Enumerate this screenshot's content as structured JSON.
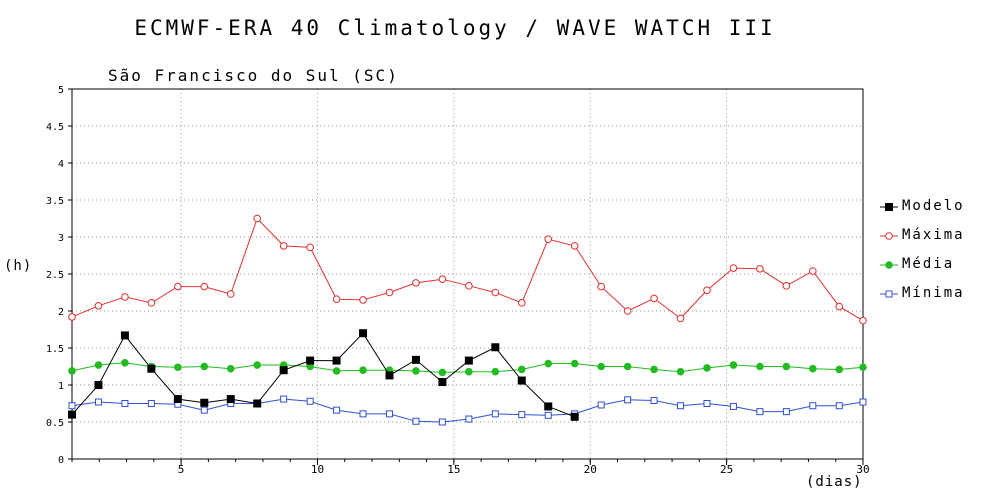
{
  "chart_data": {
    "type": "line",
    "title": "ECMWF-ERA 40 Climatology / WAVE WATCH III",
    "subtitle": "São Francisco do Sul (SC)",
    "ylabel": "(h)",
    "xlabel": "(dias)",
    "xlim": [
      1,
      30
    ],
    "ylim": [
      0,
      5
    ],
    "x_ticks": [
      5,
      10,
      15,
      20,
      25,
      30
    ],
    "y_ticks": [
      0,
      0.5,
      1,
      1.5,
      2,
      2.5,
      3,
      3.5,
      4,
      4.5,
      5
    ],
    "grid": true,
    "legend_position": "right",
    "series": [
      {
        "name": "Modelo",
        "color": "#000000",
        "marker": "filled-square",
        "x": [
          1,
          1.97,
          2.94,
          3.91,
          4.88,
          5.85,
          6.82,
          7.79,
          8.76,
          9.73,
          10.7,
          11.67,
          12.64,
          13.61,
          14.58,
          15.55,
          16.52,
          17.49,
          18.46,
          19.43
        ],
        "values": [
          0.6,
          1.0,
          1.67,
          1.22,
          0.81,
          0.76,
          0.81,
          0.75,
          1.2,
          1.33,
          1.33,
          1.7,
          1.13,
          1.34,
          1.04,
          1.33,
          1.51,
          1.06,
          0.71,
          0.57
        ]
      },
      {
        "name": "Máxima",
        "color": "#e03030",
        "marker": "open-circle",
        "x": [
          1,
          1.97,
          2.94,
          3.91,
          4.88,
          5.85,
          6.82,
          7.79,
          8.76,
          9.73,
          10.7,
          11.67,
          12.64,
          13.61,
          14.58,
          15.55,
          16.52,
          17.49,
          18.46,
          19.43,
          20.4,
          21.37,
          22.34,
          23.31,
          24.28,
          25.25,
          26.22,
          27.19,
          28.16,
          29.13,
          30
        ],
        "values": [
          1.92,
          2.07,
          2.19,
          2.11,
          2.33,
          2.33,
          2.23,
          3.25,
          2.88,
          2.86,
          2.16,
          2.15,
          2.25,
          2.38,
          2.43,
          2.34,
          2.25,
          2.11,
          2.97,
          2.88,
          2.33,
          2.0,
          2.17,
          1.9,
          2.28,
          2.58,
          2.57,
          2.34,
          2.54,
          2.06,
          1.87
        ]
      },
      {
        "name": "Média",
        "color": "#22bb22",
        "marker": "filled-circle",
        "x": [
          1,
          1.97,
          2.94,
          3.91,
          4.88,
          5.85,
          6.82,
          7.79,
          8.76,
          9.73,
          10.7,
          11.67,
          12.64,
          13.61,
          14.58,
          15.55,
          16.52,
          17.49,
          18.46,
          19.43,
          20.4,
          21.37,
          22.34,
          23.31,
          24.28,
          25.25,
          26.22,
          27.19,
          28.16,
          29.13,
          30
        ],
        "values": [
          1.19,
          1.27,
          1.3,
          1.25,
          1.24,
          1.25,
          1.22,
          1.27,
          1.27,
          1.25,
          1.19,
          1.2,
          1.2,
          1.19,
          1.17,
          1.18,
          1.18,
          1.21,
          1.29,
          1.29,
          1.25,
          1.25,
          1.21,
          1.18,
          1.23,
          1.27,
          1.25,
          1.25,
          1.22,
          1.21,
          1.24
        ]
      },
      {
        "name": "Mínima",
        "color": "#3050d0",
        "marker": "open-square",
        "x": [
          1,
          1.97,
          2.94,
          3.91,
          4.88,
          5.85,
          6.82,
          7.79,
          8.76,
          9.73,
          10.7,
          11.67,
          12.64,
          13.61,
          14.58,
          15.55,
          16.52,
          17.49,
          18.46,
          19.43,
          20.4,
          21.37,
          22.34,
          23.31,
          24.28,
          25.25,
          26.22,
          27.19,
          28.16,
          29.13,
          30
        ],
        "values": [
          0.72,
          0.77,
          0.75,
          0.75,
          0.74,
          0.66,
          0.75,
          0.75,
          0.81,
          0.78,
          0.66,
          0.61,
          0.61,
          0.51,
          0.5,
          0.54,
          0.61,
          0.6,
          0.59,
          0.61,
          0.73,
          0.8,
          0.79,
          0.72,
          0.75,
          0.71,
          0.64,
          0.64,
          0.72,
          0.72,
          0.77
        ]
      }
    ]
  }
}
